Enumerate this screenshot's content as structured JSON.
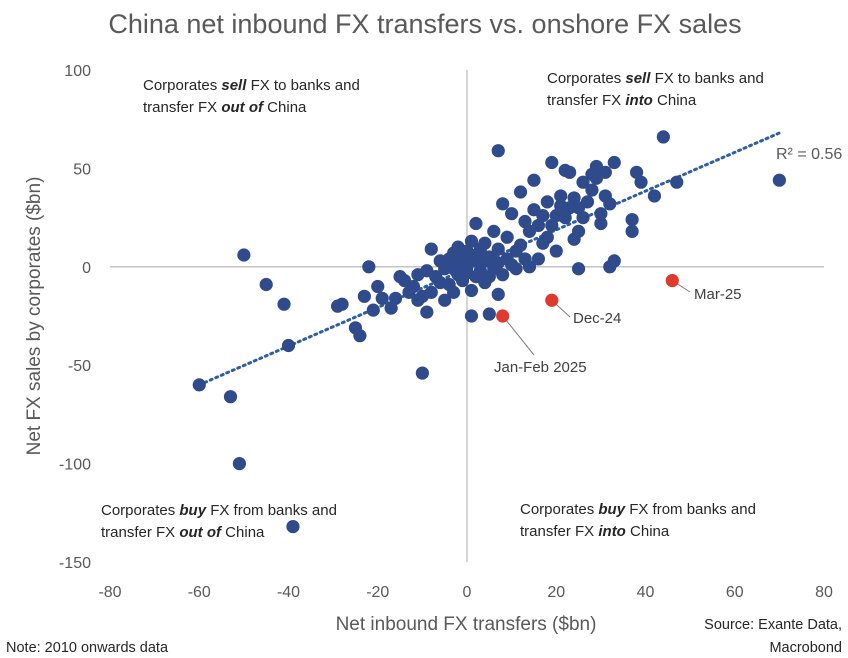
{
  "chart_data": {
    "type": "scatter",
    "title": "China net inbound FX transfers vs. onshore FX sales",
    "xlabel": "Net inbound FX transfers ($bn)",
    "ylabel": "Net FX sales by corporates ($bn)",
    "xlim": [
      -80,
      80
    ],
    "ylim": [
      -150,
      100
    ],
    "x_ticks": [
      "-80",
      "-60",
      "-40",
      "-20",
      "0",
      "20",
      "40",
      "60",
      "80"
    ],
    "y_ticks": [
      "100",
      "50",
      "0",
      "-50",
      "-100",
      "-150"
    ],
    "grid": false,
    "colors": {
      "points": "#2f4b8c",
      "highlight": "#e03a2f",
      "trend": "#2e5f9e",
      "axes": "#bfbfbf"
    },
    "quadrant_labels": {
      "top_left": [
        "Corporates ",
        "sell",
        " FX to banks and",
        "transfer FX ",
        "out of",
        " China"
      ],
      "top_right": [
        "Corporates ",
        "sell",
        " FX to banks and",
        "transfer FX ",
        "into",
        " China"
      ],
      "bottom_left": [
        "Corporates ",
        "buy",
        " FX from banks and",
        "transfer FX ",
        "out of",
        " China"
      ],
      "bottom_right": [
        "Corporates ",
        "buy",
        " FX from banks and",
        "transfer FX ",
        "into",
        " China"
      ]
    },
    "trendline": {
      "x": [
        -60,
        70
      ],
      "y": [
        -60,
        68
      ],
      "r2_label": "R² = 0.56"
    },
    "highlights": [
      {
        "label": "Jan-Feb 2025",
        "x": 8,
        "y": -25
      },
      {
        "label": "Dec-24",
        "x": 19,
        "y": -17
      },
      {
        "label": "Mar-25",
        "x": 46,
        "y": -7
      }
    ],
    "points": [
      [
        -60,
        -60
      ],
      [
        -53,
        -66
      ],
      [
        -51,
        -100
      ],
      [
        -50,
        6
      ],
      [
        -45,
        -9
      ],
      [
        -41,
        -19
      ],
      [
        -40,
        -40
      ],
      [
        -39,
        -132
      ],
      [
        -29,
        -20
      ],
      [
        -28,
        -19
      ],
      [
        -25,
        -31
      ],
      [
        -24,
        -35
      ],
      [
        -23,
        -15
      ],
      [
        -22,
        0
      ],
      [
        -21,
        -22
      ],
      [
        -20,
        -10
      ],
      [
        -19,
        -16
      ],
      [
        -17,
        -21
      ],
      [
        -16,
        -16
      ],
      [
        -15,
        -5
      ],
      [
        -14,
        -7
      ],
      [
        -13,
        -13
      ],
      [
        -12,
        -10
      ],
      [
        -11,
        -17
      ],
      [
        -11,
        -4
      ],
      [
        -10,
        -54
      ],
      [
        -10,
        -15
      ],
      [
        -9,
        -23
      ],
      [
        -9,
        -2
      ],
      [
        -8,
        9
      ],
      [
        -8,
        -13
      ],
      [
        -7,
        -5
      ],
      [
        -6,
        3
      ],
      [
        -6,
        -8
      ],
      [
        -5,
        -17
      ],
      [
        -5,
        -1
      ],
      [
        -4,
        4
      ],
      [
        -4,
        -9
      ],
      [
        -3,
        -13
      ],
      [
        -3,
        7
      ],
      [
        -3,
        -1
      ],
      [
        -2,
        -4
      ],
      [
        -2,
        10
      ],
      [
        -2,
        2
      ],
      [
        -1,
        -7
      ],
      [
        -1,
        5
      ],
      [
        -1,
        -2
      ],
      [
        0,
        0
      ],
      [
        0,
        8
      ],
      [
        0,
        -3
      ],
      [
        1,
        13
      ],
      [
        1,
        -12
      ],
      [
        1,
        4
      ],
      [
        1,
        -25
      ],
      [
        2,
        -5
      ],
      [
        2,
        22
      ],
      [
        2,
        6
      ],
      [
        3,
        1
      ],
      [
        3,
        -2
      ],
      [
        3,
        9
      ],
      [
        4,
        -8
      ],
      [
        4,
        3
      ],
      [
        4,
        12
      ],
      [
        5,
        -24
      ],
      [
        5,
        -5
      ],
      [
        5,
        5
      ],
      [
        6,
        -1
      ],
      [
        6,
        18
      ],
      [
        7,
        9
      ],
      [
        7,
        2
      ],
      [
        7,
        59
      ],
      [
        7,
        -14
      ],
      [
        8,
        32
      ],
      [
        8,
        -4
      ],
      [
        9,
        4
      ],
      [
        9,
        15
      ],
      [
        10,
        27
      ],
      [
        10,
        1
      ],
      [
        11,
        -1
      ],
      [
        11,
        8
      ],
      [
        12,
        11
      ],
      [
        12,
        38
      ],
      [
        13,
        23
      ],
      [
        13,
        4
      ],
      [
        14,
        18
      ],
      [
        14,
        0
      ],
      [
        15,
        44
      ],
      [
        15,
        29
      ],
      [
        16,
        21
      ],
      [
        16,
        4
      ],
      [
        17,
        12
      ],
      [
        17,
        26
      ],
      [
        18,
        33
      ],
      [
        18,
        15
      ],
      [
        19,
        53
      ],
      [
        19,
        21
      ],
      [
        20,
        26
      ],
      [
        20,
        8
      ],
      [
        21,
        31
      ],
      [
        21,
        36
      ],
      [
        22,
        49
      ],
      [
        22,
        25
      ],
      [
        23,
        30
      ],
      [
        23,
        48
      ],
      [
        24,
        14
      ],
      [
        24,
        35
      ],
      [
        25,
        30
      ],
      [
        25,
        18
      ],
      [
        25,
        -1
      ],
      [
        26,
        43
      ],
      [
        26,
        25
      ],
      [
        27,
        33
      ],
      [
        28,
        47
      ],
      [
        28,
        39
      ],
      [
        29,
        51
      ],
      [
        29,
        45
      ],
      [
        30,
        22
      ],
      [
        30,
        27
      ],
      [
        31,
        36
      ],
      [
        31,
        48
      ],
      [
        32,
        32
      ],
      [
        32,
        0
      ],
      [
        33,
        53
      ],
      [
        33,
        3
      ],
      [
        37,
        18
      ],
      [
        37,
        24
      ],
      [
        38,
        48
      ],
      [
        39,
        43
      ],
      [
        42,
        36
      ],
      [
        44,
        66
      ],
      [
        47,
        43
      ],
      [
        70,
        44
      ]
    ]
  },
  "footer": {
    "note": "Note: 2010 onwards data",
    "source_line1": "Source: Exante Data,",
    "source_line2": "Macrobond"
  }
}
